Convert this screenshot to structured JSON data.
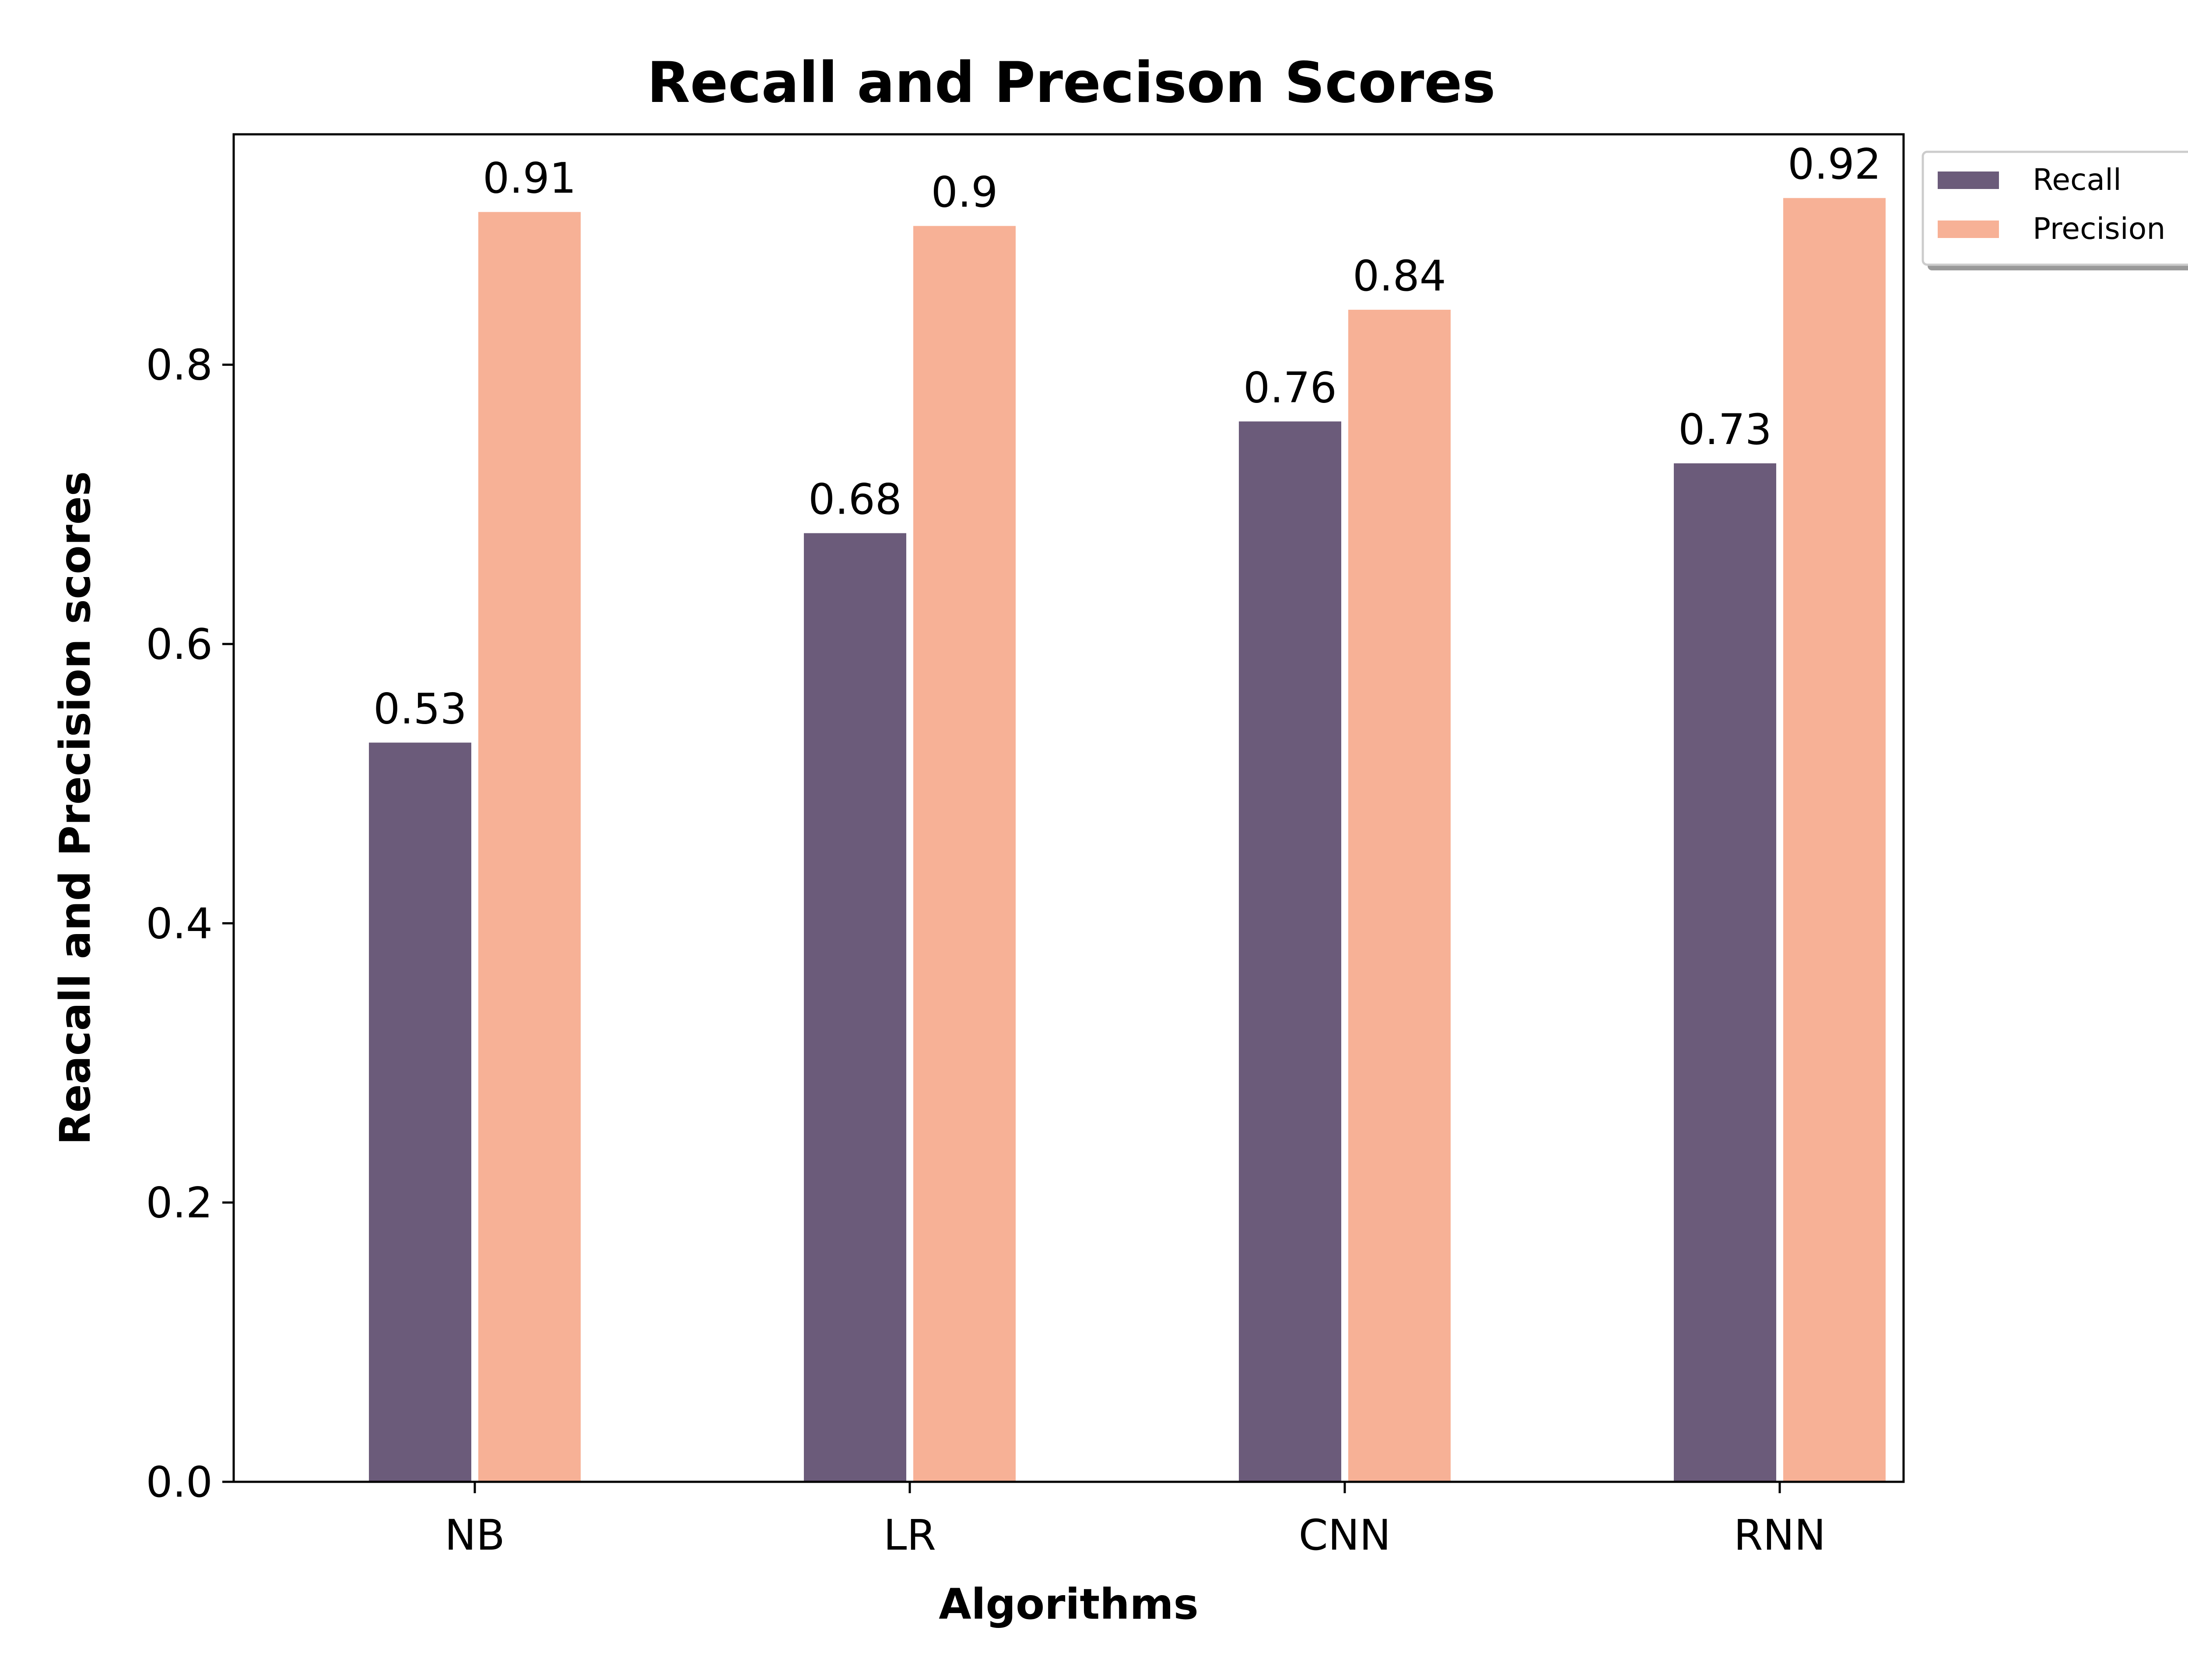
{
  "chart_data": {
    "type": "bar",
    "title": "Recall and Precison Scores",
    "xlabel": "Algorithms",
    "ylabel": "Reacall and Precision scores",
    "categories": [
      "NB",
      "LR",
      "CNN",
      "RNN"
    ],
    "ylim": [
      0,
      0.965
    ],
    "yticks": [
      0.0,
      0.2,
      0.4,
      0.6,
      0.8
    ],
    "ytick_labels": [
      "0.0",
      "0.2",
      "0.4",
      "0.6",
      "0.8"
    ],
    "grid": false,
    "legend_position": "outside-top-right",
    "series": [
      {
        "name": "Recall",
        "color": "#6b5b7a",
        "values": [
          0.53,
          0.68,
          0.76,
          0.73
        ],
        "labels": [
          "0.53",
          "0.68",
          "0.76",
          "0.73"
        ]
      },
      {
        "name": "Precision",
        "color": "#f7b196",
        "values": [
          0.91,
          0.9,
          0.84,
          0.92
        ],
        "labels": [
          "0.91",
          "0.9",
          "0.84",
          "0.92"
        ]
      }
    ]
  }
}
